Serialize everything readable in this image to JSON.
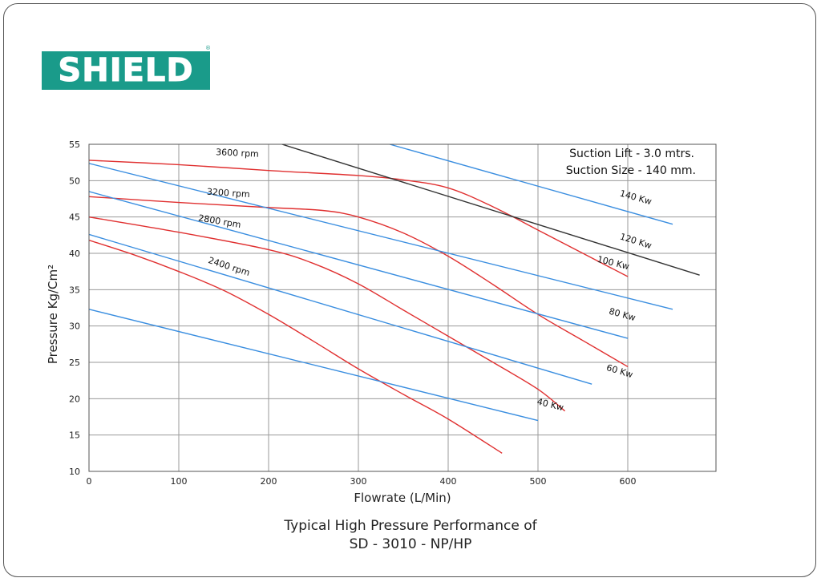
{
  "logo": {
    "text": "SHIELD",
    "reg": "®"
  },
  "caption": {
    "line1": "Typical High Pressure Performance of",
    "line2": "SD - 3010 - NP/HP"
  },
  "chart_data": {
    "type": "line",
    "xlabel": "Flowrate (L/Min)",
    "ylabel": "Pressure Kg/Cm²",
    "xlim": [
      0,
      700
    ],
    "ylim": [
      10,
      55
    ],
    "xticks": [
      0,
      100,
      200,
      300,
      400,
      500,
      600
    ],
    "yticks": [
      10,
      15,
      20,
      25,
      30,
      35,
      40,
      45,
      50,
      55
    ],
    "grid": true,
    "notes": [
      "Suction Lift - 3.0 mtrs.",
      "Suction Size - 140 mm."
    ],
    "colors": {
      "rpm": "#e03030",
      "kw": "#3a8ee0",
      "kw120": "#333333"
    },
    "series": [
      {
        "name": "3600 rpm",
        "kind": "rpm",
        "x": [
          0,
          100,
          200,
          300,
          350,
          400,
          450,
          500,
          550,
          600
        ],
        "y": [
          52.8,
          52.2,
          51.4,
          50.7,
          50.1,
          49,
          46.4,
          43.2,
          40,
          36.8
        ],
        "label_at": [
          165,
          53.4
        ]
      },
      {
        "name": "3200 rpm",
        "kind": "rpm",
        "x": [
          0,
          100,
          200,
          260,
          300,
          350,
          400,
          450,
          500,
          550,
          600
        ],
        "y": [
          47.8,
          47,
          46.3,
          45.9,
          45,
          42.8,
          39.6,
          35.7,
          31.6,
          28,
          24.4
        ],
        "label_at": [
          155,
          47.9
        ]
      },
      {
        "name": "2800 rpm",
        "kind": "rpm",
        "x": [
          0,
          100,
          200,
          250,
          300,
          350,
          400,
          450,
          500,
          530
        ],
        "y": [
          45,
          42.9,
          40.5,
          38.6,
          35.8,
          32.2,
          28.6,
          25,
          21.3,
          18.3
        ],
        "label_at": [
          145,
          44
        ]
      },
      {
        "name": "2400 rpm",
        "kind": "rpm",
        "x": [
          0,
          50,
          100,
          150,
          200,
          250,
          300,
          350,
          400,
          460
        ],
        "y": [
          41.8,
          39.8,
          37.5,
          34.9,
          31.6,
          27.9,
          24.1,
          20.6,
          17.2,
          12.5
        ],
        "label_at": [
          155,
          37.8
        ]
      },
      {
        "name": "140 Kw",
        "kind": "kw",
        "x": [
          335,
          650
        ],
        "y": [
          55,
          44
        ],
        "label_at": [
          608,
          47.3
        ]
      },
      {
        "name": "120 Kw",
        "kind": "kw120",
        "x": [
          215,
          680
        ],
        "y": [
          55,
          37
        ],
        "label_at": [
          608,
          41.3
        ]
      },
      {
        "name": "100 Kw",
        "kind": "kw",
        "x": [
          -85,
          650
        ],
        "y": [
          55,
          32.3
        ],
        "label_at": [
          583,
          38.3
        ]
      },
      {
        "name": "80 Kw",
        "kind": "kw",
        "x": [
          0,
          600
        ],
        "y": [
          48.5,
          28.3
        ],
        "label_at": [
          593,
          31.2
        ]
      },
      {
        "name": "60 Kw",
        "kind": "kw",
        "x": [
          0,
          560
        ],
        "y": [
          42.6,
          22
        ],
        "label_at": [
          590,
          23.4
        ]
      },
      {
        "name": "40 Kw",
        "kind": "kw",
        "x": [
          0,
          500
        ],
        "y": [
          32.3,
          17
        ],
        "label_at": [
          513,
          18.8
        ]
      }
    ]
  }
}
